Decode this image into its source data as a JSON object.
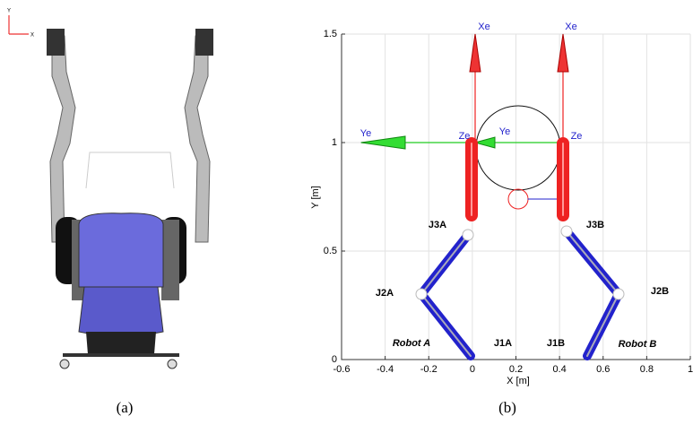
{
  "panel_a": {
    "axis_y": "Y",
    "axis_x": "X",
    "caption": "(a)"
  },
  "panel_b": {
    "caption": "(b)",
    "xlabel": "X [m]",
    "ylabel": "Y [m]",
    "xlim": [
      -0.6,
      1
    ],
    "ylim": [
      0,
      1.5
    ],
    "xticks": [
      -0.6,
      -0.4,
      -0.2,
      0,
      0.2,
      0.4,
      0.6,
      0.8,
      1
    ],
    "yticks": [
      0,
      0.5,
      1,
      1.5
    ],
    "grid": true,
    "frame_labels": [
      "Xe",
      "Xe",
      "Ye",
      "Ye",
      "Ze",
      "Ze"
    ],
    "joint_labels": [
      "J3A",
      "J2A",
      "J1A",
      "J3B",
      "J2B",
      "J1B"
    ],
    "robot_labels": [
      "Robot A",
      "Robot B"
    ]
  }
}
